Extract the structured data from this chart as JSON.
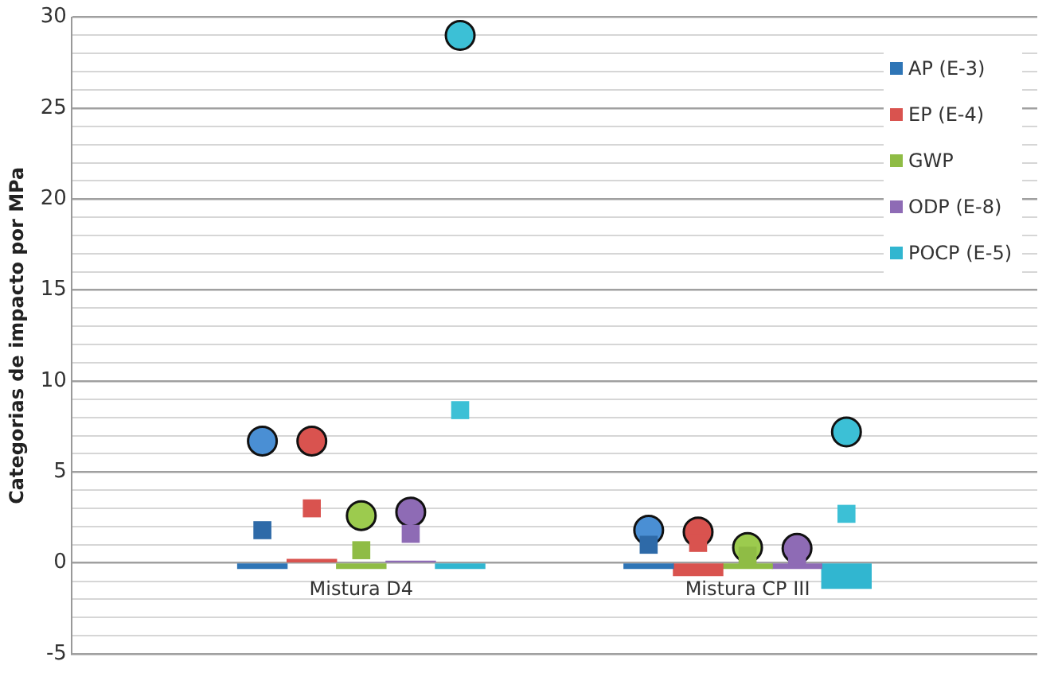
{
  "chart_data": {
    "type": "bar",
    "ylabel": "Categorias de impacto por MPa",
    "categories": [
      "Mistura D4",
      "Mistura CP III"
    ],
    "ylim": [
      -5,
      30
    ],
    "yticks": [
      -5,
      {
        "value": -4,
        "label": null
      },
      {
        "value": -3,
        "label": null
      },
      {
        "value": -2,
        "label": null
      },
      {
        "value": -1,
        "label": null
      },
      0,
      {
        "value": 1,
        "label": null
      },
      {
        "value": 2,
        "label": null
      },
      {
        "value": 3,
        "label": null
      },
      {
        "value": 4,
        "label": null
      },
      5,
      {
        "value": 6,
        "label": null
      },
      {
        "value": 7,
        "label": null
      },
      {
        "value": 8,
        "label": null
      },
      {
        "value": 9,
        "label": null
      },
      10,
      {
        "value": 11,
        "label": null
      },
      {
        "value": 12,
        "label": null
      },
      {
        "value": 13,
        "label": null
      },
      {
        "value": 14,
        "label": null
      },
      15,
      {
        "value": 16,
        "label": null
      },
      {
        "value": 17,
        "label": null
      },
      {
        "value": 18,
        "label": null
      },
      {
        "value": 19,
        "label": null
      },
      20,
      {
        "value": 21,
        "label": null
      },
      {
        "value": 22,
        "label": null
      },
      {
        "value": 23,
        "label": null
      },
      {
        "value": 24,
        "label": null
      },
      25,
      {
        "value": 26,
        "label": null
      },
      {
        "value": 27,
        "label": null
      },
      {
        "value": 28,
        "label": null
      },
      {
        "value": 29,
        "label": null
      },
      30
    ],
    "grid": "y",
    "legend": "top right",
    "series": [
      {
        "name": "AP (E-3)",
        "color": "#2e75b6",
        "values": [
          -0.3,
          -0.3
        ]
      },
      {
        "name": "EP (E-4)",
        "color": "#d9534f",
        "values": [
          0.2,
          -0.7
        ]
      },
      {
        "name": "GWP",
        "color": "#8fbc45",
        "values": [
          -0.3,
          -0.3
        ]
      },
      {
        "name": "ODP (E-8)",
        "color": "#8e6bb5",
        "values": [
          0.1,
          -0.3
        ]
      },
      {
        "name": "POCP (E-5)",
        "color": "#31b6d0",
        "values": [
          -0.3,
          -1.4
        ]
      },
      {
        "type": "scatter",
        "marker": "square",
        "color": "#2e6aa8",
        "x": [
          "Mistura D4",
          "Mistura CP III"
        ],
        "values": [
          1.8,
          1.0
        ]
      },
      {
        "type": "scatter",
        "marker": "square",
        "color": "#d9534f",
        "x": [
          "Mistura D4",
          "Mistura CP III"
        ],
        "values": [
          3.0,
          1.1
        ]
      },
      {
        "type": "scatter",
        "marker": "square",
        "color": "#8fbc45",
        "x": [
          "Mistura D4",
          "Mistura CP III"
        ],
        "values": [
          0.7,
          0.4
        ]
      },
      {
        "type": "scatter",
        "marker": "square",
        "color": "#8e6bb5",
        "x": [
          "Mistura D4",
          "Mistura CP III"
        ],
        "values": [
          1.6,
          0.4
        ]
      },
      {
        "type": "scatter",
        "marker": "square",
        "color": "#3cc0d6",
        "x": [
          "Mistura D4",
          "Mistura CP III"
        ],
        "values": [
          8.4,
          2.7
        ]
      },
      {
        "type": "scatter",
        "marker": "circle",
        "color": "#4a8fd4",
        "x": [
          "Mistura D4",
          "Mistura CP III"
        ],
        "values": [
          6.7,
          1.8
        ]
      },
      {
        "type": "scatter",
        "marker": "circle",
        "color": "#d9534f",
        "x": [
          "Mistura D4",
          "Mistura CP III"
        ],
        "values": [
          6.7,
          1.7
        ]
      },
      {
        "type": "scatter",
        "marker": "circle",
        "color": "#9ccb4e",
        "x": [
          "Mistura D4",
          "Mistura CP III"
        ],
        "values": [
          2.6,
          0.85
        ]
      },
      {
        "type": "scatter",
        "marker": "circle",
        "color": "#8e6bb5",
        "x": [
          "Mistura D4",
          "Mistura CP III"
        ],
        "values": [
          2.8,
          0.8
        ]
      },
      {
        "type": "scatter",
        "marker": "circle",
        "color": "#3cc0d6",
        "x": [
          "Mistura D4",
          "Mistura CP III"
        ],
        "values": [
          29.0,
          7.2
        ]
      }
    ]
  }
}
